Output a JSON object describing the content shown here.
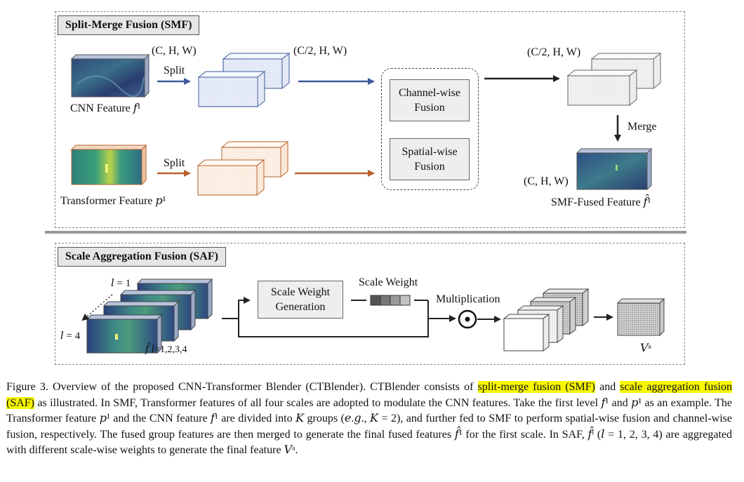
{
  "smf": {
    "title": "Split-Merge Fusion (SMF)",
    "dim_chw_top": "(C, H, W)",
    "dim_half_mid": "(C/2, H, W)",
    "dim_half_right": "(C/2, H, W)",
    "dim_chw_bottom": "(C, H, W)",
    "split_top": "Split",
    "split_bottom": "Split",
    "cnn_feature": "CNN Feature 𝑓¹",
    "transformer_feature": "Transformer Feature 𝑝¹",
    "channel_fusion": "Channel-wise Fusion",
    "spatial_fusion": "Spatial-wise Fusion",
    "merge": "Merge",
    "fused_feature": "SMF-Fused Feature 𝑓̂¹"
  },
  "saf": {
    "title": "Scale Aggregation Fusion (SAF)",
    "l1": "𝑙 = 1",
    "l4": "𝑙 = 4",
    "stack_label": "𝑓̂ 𝑙=1,2,3,4",
    "scale_weight_generation": "Scale Weight Generation",
    "scale_weight": "Scale Weight",
    "multiplication": "Multiplication",
    "output": "𝑉ᵃ"
  },
  "caption": {
    "p1": "Figure 3. Overview of the proposed CNN-Transformer Blender (CTBlender). CTBlender consists of ",
    "hl1": "split-merge fusion (SMF)",
    "p2": " and ",
    "hl2": "scale aggregation fusion (SAF)",
    "p3": " as illustrated. In SMF, Transformer features of all four scales are adopted to modulate the CNN features. Take the first level 𝑓¹ and 𝑝¹ as an example. The Transformer feature 𝑝¹ and the CNN feature 𝑓¹ are divided into 𝐾 groups (𝑒.𝑔., 𝐾 = 2), and further fed to SMF to perform spatial-wise fusion and channel-wise fusion, respectively. The fused group features are then merged to generate the final fused features 𝑓̂¹ for the first scale. In SAF, 𝑓̂ˡ (𝑙 = 1, 2, 3, 4) are aggregated with different scale-wise weights to generate the final feature 𝑉ᵃ."
  },
  "colors": {
    "blue_arrow": "#3d5a9a",
    "orange_arrow": "#b5612a",
    "highlight": "#f7f700"
  }
}
